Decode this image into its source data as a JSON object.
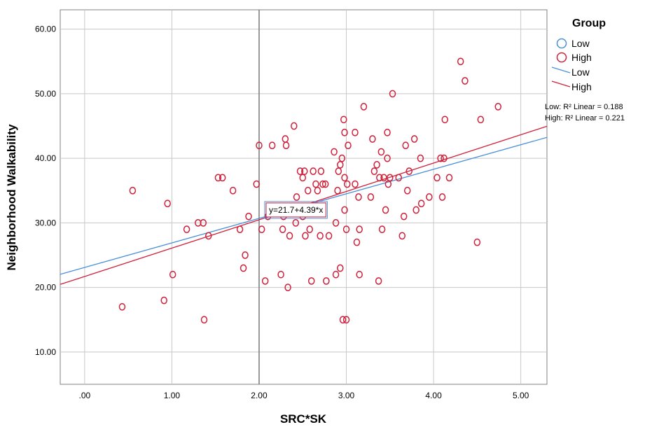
{
  "chart_data": {
    "type": "scatter",
    "xlabel": "SRC*SK",
    "ylabel": "Neighborhood Walkability",
    "xlim": [
      -0.28,
      5.3
    ],
    "ylim": [
      5.0,
      63.0
    ],
    "x_ticks": [
      0,
      1,
      2,
      3,
      4,
      5
    ],
    "x_tick_labels": [
      ".00",
      "1.00",
      "2.00",
      "3.00",
      "4.00",
      "5.00"
    ],
    "y_ticks": [
      10,
      20,
      30,
      40,
      50,
      60
    ],
    "y_tick_labels": [
      "10.00",
      "20.00",
      "30.00",
      "40.00",
      "50.00",
      "60.00"
    ],
    "grid": true,
    "reference_line_x": 2.0,
    "legend_position": "right",
    "legend": {
      "title": "Group",
      "items": [
        {
          "label": "Low",
          "type": "marker",
          "color": "#4a90d9"
        },
        {
          "label": "High",
          "type": "marker",
          "color": "#d0203a"
        },
        {
          "label": "Low",
          "type": "line",
          "color": "#4a90d9"
        },
        {
          "label": "High",
          "type": "line",
          "color": "#d0203a"
        }
      ],
      "r2_low": "Low: R² Linear = 0.188",
      "r2_high": "High: R² Linear = 0.221"
    },
    "equation_label": "y=21.7+4.39*x",
    "fit_lines": [
      {
        "name": "Low",
        "color": "#4a90d9",
        "intercept": 23.1,
        "slope": 3.8
      },
      {
        "name": "High",
        "color": "#d0203a",
        "intercept": 21.7,
        "slope": 4.39
      }
    ],
    "series": [
      {
        "name": "High",
        "color": "#d0203a",
        "points": [
          [
            0.43,
            17
          ],
          [
            0.55,
            35
          ],
          [
            0.91,
            18
          ],
          [
            0.95,
            33
          ],
          [
            1.01,
            22
          ],
          [
            1.17,
            29
          ],
          [
            1.3,
            30
          ],
          [
            1.36,
            30
          ],
          [
            1.37,
            15
          ],
          [
            1.42,
            28
          ],
          [
            1.53,
            37
          ],
          [
            1.58,
            37
          ],
          [
            1.7,
            35
          ],
          [
            1.78,
            29
          ],
          [
            1.82,
            23
          ],
          [
            1.84,
            25
          ],
          [
            1.88,
            31
          ],
          [
            1.97,
            36
          ],
          [
            2.0,
            42
          ],
          [
            2.03,
            29
          ],
          [
            2.07,
            21
          ],
          [
            2.1,
            31
          ],
          [
            2.15,
            42
          ],
          [
            2.25,
            22
          ],
          [
            2.27,
            29
          ],
          [
            2.28,
            31
          ],
          [
            2.3,
            43
          ],
          [
            2.31,
            42
          ],
          [
            2.33,
            20
          ],
          [
            2.35,
            28
          ],
          [
            2.4,
            45
          ],
          [
            2.42,
            30
          ],
          [
            2.43,
            34
          ],
          [
            2.47,
            38
          ],
          [
            2.5,
            31
          ],
          [
            2.5,
            37
          ],
          [
            2.52,
            38
          ],
          [
            2.53,
            28
          ],
          [
            2.56,
            35
          ],
          [
            2.58,
            29
          ],
          [
            2.6,
            21
          ],
          [
            2.62,
            38
          ],
          [
            2.65,
            36
          ],
          [
            2.67,
            35
          ],
          [
            2.7,
            28
          ],
          [
            2.71,
            38
          ],
          [
            2.73,
            36
          ],
          [
            2.76,
            36
          ],
          [
            2.77,
            21
          ],
          [
            2.8,
            28
          ],
          [
            2.86,
            41
          ],
          [
            2.88,
            30
          ],
          [
            2.88,
            22
          ],
          [
            2.9,
            35
          ],
          [
            2.91,
            38
          ],
          [
            2.93,
            23
          ],
          [
            2.93,
            39
          ],
          [
            2.95,
            40
          ],
          [
            2.96,
            15
          ],
          [
            2.97,
            46
          ],
          [
            2.98,
            44
          ],
          [
            2.98,
            37
          ],
          [
            2.98,
            32
          ],
          [
            3.0,
            15
          ],
          [
            3.0,
            29
          ],
          [
            3.01,
            36
          ],
          [
            3.02,
            42
          ],
          [
            3.1,
            44
          ],
          [
            3.1,
            36
          ],
          [
            3.12,
            27
          ],
          [
            3.14,
            34
          ],
          [
            3.15,
            29
          ],
          [
            3.15,
            22
          ],
          [
            3.2,
            48
          ],
          [
            3.28,
            34
          ],
          [
            3.3,
            43
          ],
          [
            3.32,
            38
          ],
          [
            3.35,
            39
          ],
          [
            3.37,
            21
          ],
          [
            3.38,
            37
          ],
          [
            3.4,
            41
          ],
          [
            3.41,
            29
          ],
          [
            3.43,
            37
          ],
          [
            3.45,
            32
          ],
          [
            3.47,
            44
          ],
          [
            3.47,
            40
          ],
          [
            3.48,
            36
          ],
          [
            3.5,
            37
          ],
          [
            3.53,
            50
          ],
          [
            3.6,
            37
          ],
          [
            3.64,
            28
          ],
          [
            3.66,
            31
          ],
          [
            3.68,
            42
          ],
          [
            3.7,
            35
          ],
          [
            3.72,
            38
          ],
          [
            3.78,
            43
          ],
          [
            3.8,
            32
          ],
          [
            3.85,
            40
          ],
          [
            3.86,
            33
          ],
          [
            3.95,
            34
          ],
          [
            4.04,
            37
          ],
          [
            4.08,
            40
          ],
          [
            4.1,
            34
          ],
          [
            4.12,
            40
          ],
          [
            4.13,
            46
          ],
          [
            4.18,
            37
          ],
          [
            4.31,
            55
          ],
          [
            4.36,
            52
          ],
          [
            4.5,
            27
          ],
          [
            4.54,
            46
          ],
          [
            4.74,
            48
          ]
        ]
      }
    ]
  }
}
